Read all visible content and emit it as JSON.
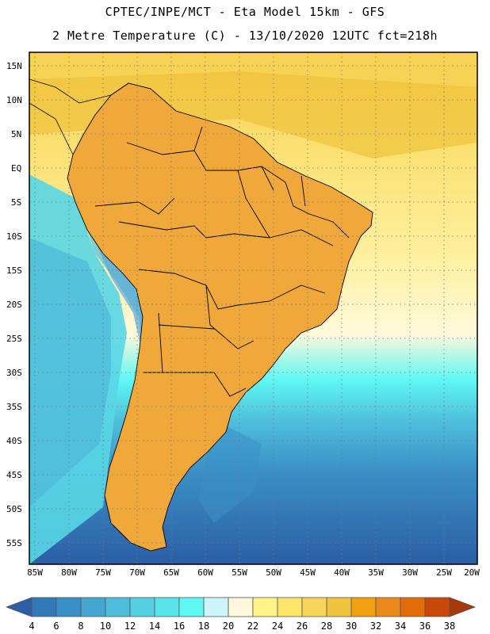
{
  "header": {
    "line1": "CPTEC/INPE/MCT -  Eta Model 15km - GFS",
    "line2": "2 Metre Temperature (C) - 13/10/2020 12UTC fct=218h"
  },
  "axes": {
    "lat_labels": [
      "15N",
      "10N",
      "5N",
      "EQ",
      "5S",
      "10S",
      "15S",
      "20S",
      "25S",
      "30S",
      "35S",
      "40S",
      "45S",
      "50S",
      "55S"
    ],
    "lon_labels": [
      "85W",
      "80W",
      "75W",
      "70W",
      "65W",
      "60W",
      "55W",
      "50W",
      "45W",
      "40W",
      "35W",
      "30W",
      "25W",
      "20W"
    ]
  },
  "colorbar": {
    "labels": [
      "4",
      "6",
      "8",
      "10",
      "12",
      "14",
      "16",
      "18",
      "20",
      "22",
      "24",
      "26",
      "28",
      "30",
      "32",
      "34",
      "36",
      "38"
    ],
    "colors": [
      "#2b5ea5",
      "#3279b8",
      "#3a8fc6",
      "#45a6d1",
      "#50bcdb",
      "#55cfe2",
      "#59e3ea",
      "#5ff7f4",
      "#ccf4fa",
      "#fff8dc",
      "#fff389",
      "#fde56a",
      "#f7d45a",
      "#f0c33c",
      "#f0a010",
      "#ea8a1c",
      "#e06c0c",
      "#c8480a",
      "#a8380a"
    ]
  }
}
